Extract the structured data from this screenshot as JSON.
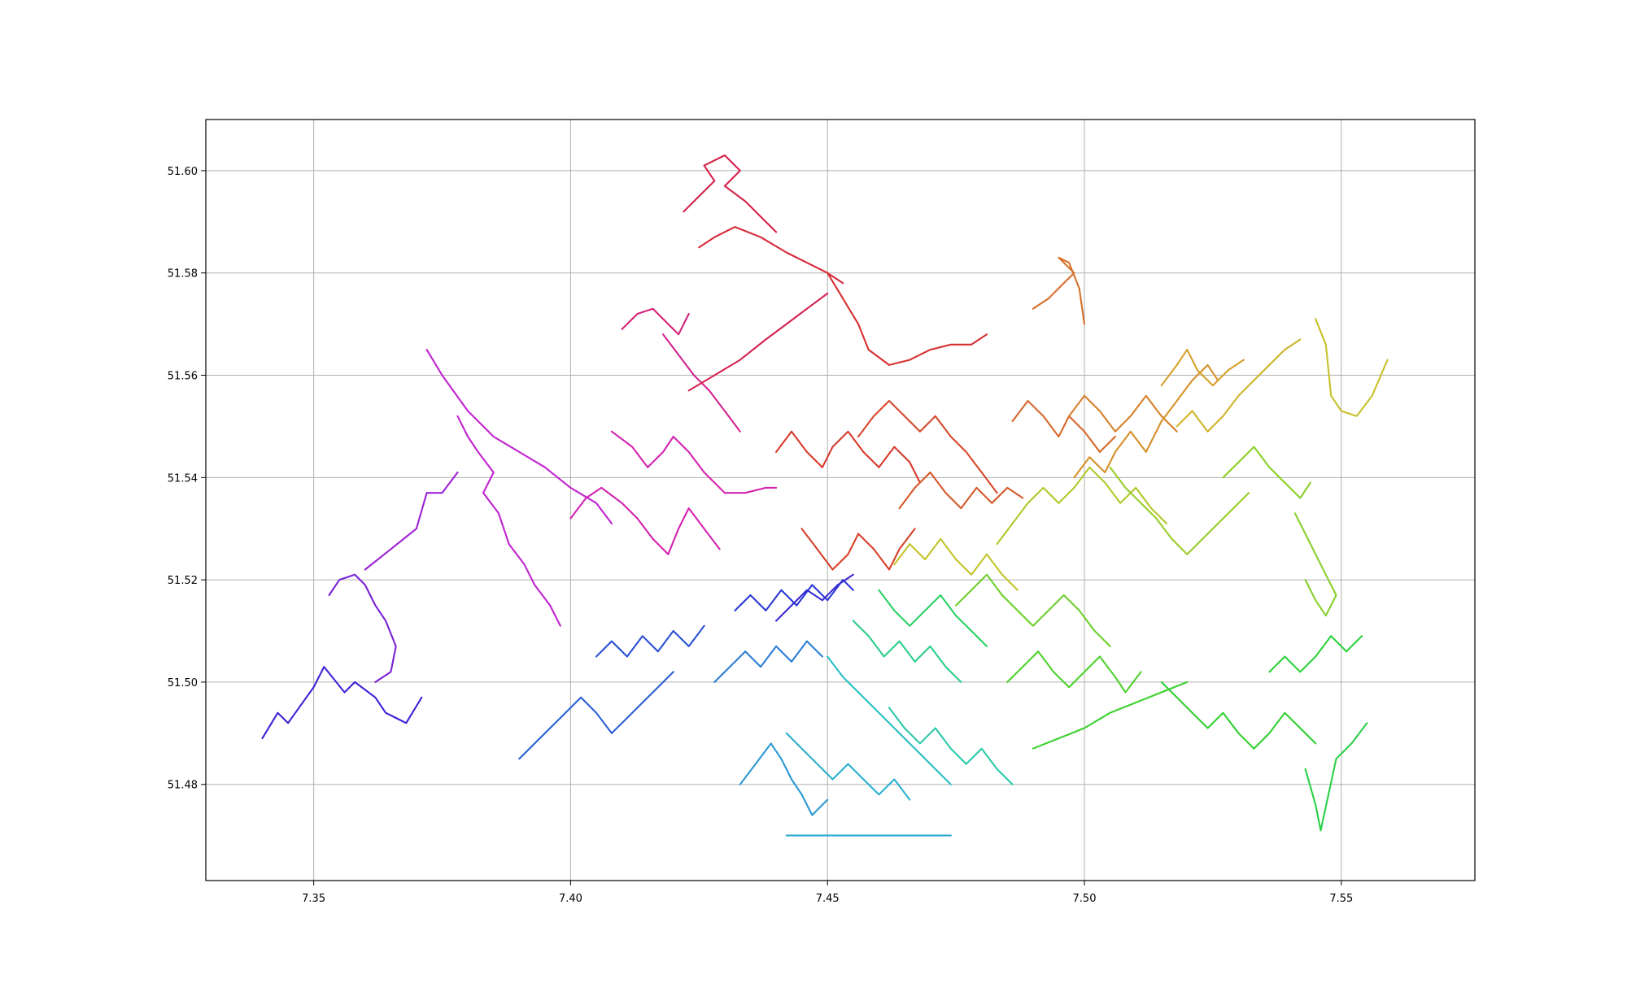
{
  "chart_data": {
    "type": "line",
    "title": "",
    "xlabel": "",
    "ylabel": "",
    "xlim": [
      7.329,
      7.576
    ],
    "ylim": [
      51.4612,
      51.61
    ],
    "xticks": [
      "7.35",
      "7.40",
      "7.45",
      "7.50",
      "7.55"
    ],
    "yticks": [
      "51.48",
      "51.50",
      "51.52",
      "51.54",
      "51.56",
      "51.58",
      "51.60"
    ],
    "grid": true,
    "legend": "none",
    "series": [
      {
        "color": "#3b22d6",
        "x": [
          7.34,
          7.343,
          7.345,
          7.35,
          7.352,
          7.356,
          7.358,
          7.362,
          7.364,
          7.366,
          7.368,
          7.371
        ],
        "y": [
          51.489,
          51.494,
          51.492,
          51.499,
          51.503,
          51.498,
          51.5,
          51.497,
          51.494,
          51.493,
          51.492,
          51.497
        ]
      },
      {
        "color": "#7a22d6",
        "x": [
          7.353,
          7.355,
          7.358,
          7.36,
          7.362,
          7.364,
          7.366,
          7.365,
          7.362
        ],
        "y": [
          51.517,
          51.52,
          51.521,
          51.519,
          51.515,
          51.512,
          51.507,
          51.502,
          51.5
        ]
      },
      {
        "color": "#9d22d6",
        "x": [
          7.36,
          7.365,
          7.37,
          7.372,
          7.375,
          7.378
        ],
        "y": [
          51.522,
          51.526,
          51.53,
          51.537,
          51.537,
          51.541
        ]
      },
      {
        "color": "#c222d0",
        "x": [
          7.378,
          7.38,
          7.382,
          7.385,
          7.383,
          7.386,
          7.388,
          7.391,
          7.393,
          7.396,
          7.398
        ],
        "y": [
          51.552,
          51.548,
          51.545,
          51.541,
          51.537,
          51.533,
          51.527,
          51.523,
          51.519,
          51.515,
          51.511
        ]
      },
      {
        "color": "#c222d0",
        "x": [
          7.372,
          7.375,
          7.38,
          7.385,
          7.39,
          7.395,
          7.4,
          7.405,
          7.408
        ],
        "y": [
          51.565,
          51.56,
          51.553,
          51.548,
          51.545,
          51.542,
          51.538,
          51.535,
          51.531
        ]
      },
      {
        "color": "#d422b0",
        "x": [
          7.4,
          7.403,
          7.406,
          7.41,
          7.413,
          7.416,
          7.419,
          7.421,
          7.423,
          7.426,
          7.429
        ],
        "y": [
          51.532,
          51.536,
          51.538,
          51.535,
          51.532,
          51.528,
          51.525,
          51.53,
          51.534,
          51.53,
          51.526
        ]
      },
      {
        "color": "#d422b0",
        "x": [
          7.408,
          7.412,
          7.415,
          7.418,
          7.42,
          7.423,
          7.426,
          7.43,
          7.434,
          7.438,
          7.44
        ],
        "y": [
          51.549,
          51.546,
          51.542,
          51.545,
          51.548,
          51.545,
          51.541,
          51.537,
          51.537,
          51.538,
          51.538
        ]
      },
      {
        "color": "#d42290",
        "x": [
          7.418,
          7.421,
          7.424,
          7.427,
          7.43,
          7.433
        ],
        "y": [
          51.568,
          51.564,
          51.56,
          51.557,
          51.553,
          51.549
        ]
      },
      {
        "color": "#d4227a",
        "x": [
          7.41,
          7.413,
          7.416,
          7.419,
          7.421,
          7.423
        ],
        "y": [
          51.569,
          51.572,
          51.573,
          51.57,
          51.568,
          51.572
        ]
      },
      {
        "color": "#d42250",
        "x": [
          7.423,
          7.428,
          7.433,
          7.438,
          7.442,
          7.446,
          7.45
        ],
        "y": [
          51.557,
          51.56,
          51.563,
          51.567,
          51.57,
          51.573,
          51.576
        ]
      },
      {
        "color": "#d6224a",
        "x": [
          7.422,
          7.425,
          7.428,
          7.426,
          7.43,
          7.433,
          7.43,
          7.434,
          7.437,
          7.44
        ],
        "y": [
          51.592,
          51.595,
          51.598,
          51.601,
          51.603,
          51.6,
          51.597,
          51.594,
          51.591,
          51.588
        ]
      },
      {
        "color": "#d62a3a",
        "x": [
          7.425,
          7.428,
          7.432,
          7.437,
          7.442,
          7.446,
          7.45,
          7.453
        ],
        "y": [
          51.585,
          51.587,
          51.589,
          51.587,
          51.584,
          51.582,
          51.58,
          51.578
        ]
      },
      {
        "color": "#d6302f",
        "x": [
          7.45,
          7.453,
          7.456,
          7.458,
          7.462,
          7.466,
          7.47,
          7.474,
          7.478,
          7.481
        ],
        "y": [
          51.58,
          51.575,
          51.57,
          51.565,
          51.562,
          51.563,
          51.565,
          51.566,
          51.566,
          51.568
        ]
      },
      {
        "color": "#d63a2a",
        "x": [
          7.44,
          7.443,
          7.446,
          7.449,
          7.451,
          7.454,
          7.457,
          7.46,
          7.463,
          7.466,
          7.468
        ],
        "y": [
          51.545,
          51.549,
          51.545,
          51.542,
          51.546,
          51.549,
          51.545,
          51.542,
          51.546,
          51.543,
          51.539
        ]
      },
      {
        "color": "#d6402a",
        "x": [
          7.445,
          7.448,
          7.451,
          7.454,
          7.456,
          7.459,
          7.462,
          7.464,
          7.467
        ],
        "y": [
          51.53,
          51.526,
          51.522,
          51.525,
          51.529,
          51.526,
          51.522,
          51.526,
          51.53
        ]
      },
      {
        "color": "#d6482a",
        "x": [
          7.456,
          7.459,
          7.462,
          7.465,
          7.468,
          7.471,
          7.474,
          7.477,
          7.48,
          7.483
        ],
        "y": [
          51.548,
          51.552,
          51.555,
          51.552,
          51.549,
          51.552,
          51.548,
          51.545,
          51.541,
          51.537
        ]
      },
      {
        "color": "#d6582a",
        "x": [
          7.464,
          7.467,
          7.47,
          7.473,
          7.476,
          7.479,
          7.482,
          7.485,
          7.488
        ],
        "y": [
          51.534,
          51.538,
          51.541,
          51.537,
          51.534,
          51.538,
          51.535,
          51.538,
          51.536
        ]
      },
      {
        "color": "#d6682a",
        "x": [
          7.486,
          7.489,
          7.492,
          7.495,
          7.497,
          7.5,
          7.503,
          7.506
        ],
        "y": [
          51.551,
          51.555,
          51.552,
          51.548,
          51.552,
          51.549,
          51.545,
          51.548
        ]
      },
      {
        "color": "#d6702a",
        "x": [
          7.49,
          7.493,
          7.496,
          7.498,
          7.495,
          7.497,
          7.499,
          7.5
        ],
        "y": [
          51.573,
          51.575,
          51.578,
          51.58,
          51.583,
          51.582,
          51.577,
          51.57
        ]
      },
      {
        "color": "#d6802a",
        "x": [
          7.497,
          7.5,
          7.503,
          7.506,
          7.509,
          7.512,
          7.515,
          7.518
        ],
        "y": [
          51.552,
          51.556,
          51.553,
          51.549,
          51.552,
          51.556,
          51.552,
          51.549
        ]
      },
      {
        "color": "#d69028",
        "x": [
          7.498,
          7.501,
          7.504,
          7.506,
          7.509,
          7.512,
          7.515,
          7.518,
          7.521,
          7.524,
          7.526
        ],
        "y": [
          51.54,
          51.544,
          51.541,
          51.545,
          51.549,
          51.545,
          51.551,
          51.555,
          51.559,
          51.562,
          51.559
        ]
      },
      {
        "color": "#d6a02a",
        "x": [
          7.515,
          7.518,
          7.52,
          7.522,
          7.525,
          7.528,
          7.531
        ],
        "y": [
          51.558,
          51.562,
          51.565,
          51.561,
          51.558,
          51.561,
          51.563
        ]
      },
      {
        "color": "#cfb42a",
        "x": [
          7.518,
          7.521,
          7.524,
          7.527,
          7.53,
          7.533,
          7.536,
          7.539,
          7.542
        ],
        "y": [
          51.55,
          51.553,
          51.549,
          51.552,
          51.556,
          51.559,
          51.562,
          51.565,
          51.567
        ]
      },
      {
        "color": "#c8c02a",
        "x": [
          7.545,
          7.547,
          7.548,
          7.55,
          7.553,
          7.556,
          7.559
        ],
        "y": [
          51.571,
          51.566,
          51.556,
          51.553,
          51.552,
          51.556,
          51.563
        ]
      },
      {
        "color": "#c2c42a",
        "x": [
          7.463,
          7.466,
          7.469,
          7.472,
          7.475,
          7.478,
          7.481,
          7.484,
          7.487
        ],
        "y": [
          51.523,
          51.527,
          51.524,
          51.528,
          51.524,
          51.521,
          51.525,
          51.521,
          51.518
        ]
      },
      {
        "color": "#b0c82a",
        "x": [
          7.483,
          7.486,
          7.489,
          7.492,
          7.495,
          7.498,
          7.501,
          7.504,
          7.507,
          7.51,
          7.513,
          7.516
        ],
        "y": [
          51.527,
          51.531,
          51.535,
          51.538,
          51.535,
          51.538,
          51.542,
          51.539,
          51.535,
          51.538,
          51.534,
          51.531
        ]
      },
      {
        "color": "#9ccc2a",
        "x": [
          7.505,
          7.508,
          7.511,
          7.514,
          7.517,
          7.52,
          7.523,
          7.526,
          7.529,
          7.532
        ],
        "y": [
          51.542,
          51.538,
          51.535,
          51.532,
          51.528,
          51.525,
          51.528,
          51.531,
          51.534,
          51.537
        ]
      },
      {
        "color": "#8ad02a",
        "x": [
          7.527,
          7.53,
          7.533,
          7.536,
          7.539,
          7.542,
          7.544
        ],
        "y": [
          51.54,
          51.543,
          51.546,
          51.542,
          51.539,
          51.536,
          51.539
        ]
      },
      {
        "color": "#88d02c",
        "x": [
          7.541,
          7.543,
          7.545,
          7.547,
          7.549,
          7.547,
          7.545,
          7.543
        ],
        "y": [
          51.533,
          51.529,
          51.525,
          51.521,
          51.517,
          51.513,
          51.516,
          51.52
        ]
      },
      {
        "color": "#6cd02c",
        "x": [
          7.475,
          7.478,
          7.481,
          7.484,
          7.487,
          7.49,
          7.493,
          7.496,
          7.499,
          7.502,
          7.505
        ],
        "y": [
          51.515,
          51.518,
          51.521,
          51.517,
          51.514,
          51.511,
          51.514,
          51.517,
          51.514,
          51.51,
          51.507
        ]
      },
      {
        "color": "#4ed22c",
        "x": [
          7.485,
          7.488,
          7.491,
          7.494,
          7.497,
          7.5,
          7.503,
          7.506,
          7.508,
          7.511
        ],
        "y": [
          51.5,
          51.503,
          51.506,
          51.502,
          51.499,
          51.502,
          51.505,
          51.501,
          51.498,
          51.502
        ]
      },
      {
        "color": "#3cd22e",
        "x": [
          7.49,
          7.495,
          7.5,
          7.505,
          7.51,
          7.515,
          7.52
        ],
        "y": [
          51.487,
          51.489,
          51.491,
          51.494,
          51.496,
          51.498,
          51.5
        ]
      },
      {
        "color": "#30d030",
        "x": [
          7.515,
          7.518,
          7.521,
          7.524,
          7.527,
          7.53,
          7.533,
          7.536,
          7.539,
          7.542,
          7.545
        ],
        "y": [
          51.5,
          51.497,
          51.494,
          51.491,
          51.494,
          51.49,
          51.487,
          51.49,
          51.494,
          51.491,
          51.488
        ]
      },
      {
        "color": "#2ed23a",
        "x": [
          7.536,
          7.539,
          7.542,
          7.545,
          7.548,
          7.551,
          7.554
        ],
        "y": [
          51.502,
          51.505,
          51.502,
          51.505,
          51.509,
          51.506,
          51.509
        ]
      },
      {
        "color": "#2ad048",
        "x": [
          7.543,
          7.545,
          7.546,
          7.549,
          7.552,
          7.555
        ],
        "y": [
          51.483,
          51.476,
          51.471,
          51.485,
          51.488,
          51.492
        ]
      },
      {
        "color": "#2ad064",
        "x": [
          7.46,
          7.463,
          7.466,
          7.469,
          7.472,
          7.475,
          7.478,
          7.481
        ],
        "y": [
          51.518,
          51.514,
          51.511,
          51.514,
          51.517,
          51.513,
          51.51,
          51.507
        ]
      },
      {
        "color": "#2acf8a",
        "x": [
          7.455,
          7.458,
          7.461,
          7.464,
          7.467,
          7.47,
          7.473,
          7.476
        ],
        "y": [
          51.512,
          51.509,
          51.505,
          51.508,
          51.504,
          51.507,
          51.503,
          51.5
        ]
      },
      {
        "color": "#2acaa8",
        "x": [
          7.462,
          7.465,
          7.468,
          7.471,
          7.474,
          7.477,
          7.48,
          7.483,
          7.486
        ],
        "y": [
          51.495,
          51.491,
          51.488,
          51.491,
          51.487,
          51.484,
          51.487,
          51.483,
          51.48
        ]
      },
      {
        "color": "#2abec4",
        "x": [
          7.45,
          7.453,
          7.456,
          7.459,
          7.462,
          7.465,
          7.468,
          7.471,
          7.474
        ],
        "y": [
          51.505,
          51.501,
          51.498,
          51.495,
          51.492,
          51.489,
          51.486,
          51.483,
          51.48
        ]
      },
      {
        "color": "#2ab0d0",
        "x": [
          7.442,
          7.445,
          7.448,
          7.451,
          7.454,
          7.457,
          7.46,
          7.463,
          7.466
        ],
        "y": [
          51.49,
          51.487,
          51.484,
          51.481,
          51.484,
          51.481,
          51.478,
          51.481,
          51.477
        ]
      },
      {
        "color": "#2aa6d2",
        "x": [
          7.442,
          7.448,
          7.455,
          7.462,
          7.468,
          7.474
        ],
        "y": [
          51.47,
          51.47,
          51.47,
          51.47,
          51.47,
          51.47
        ]
      },
      {
        "color": "#2a98d2",
        "x": [
          7.433,
          7.436,
          7.439,
          7.441,
          7.443,
          7.445,
          7.447,
          7.45
        ],
        "y": [
          51.48,
          51.484,
          51.488,
          51.485,
          51.481,
          51.478,
          51.474,
          51.477
        ]
      },
      {
        "color": "#2a7ed4",
        "x": [
          7.428,
          7.431,
          7.434,
          7.437,
          7.44,
          7.443,
          7.446,
          7.449
        ],
        "y": [
          51.5,
          51.503,
          51.506,
          51.503,
          51.507,
          51.504,
          51.508,
          51.505
        ]
      },
      {
        "color": "#2a60d4",
        "x": [
          7.39,
          7.393,
          7.396,
          7.399,
          7.402,
          7.405,
          7.408,
          7.411,
          7.414,
          7.417,
          7.42
        ],
        "y": [
          51.485,
          51.488,
          51.491,
          51.494,
          51.497,
          51.494,
          51.49,
          51.493,
          51.496,
          51.499,
          51.502
        ]
      },
      {
        "color": "#2a50d4",
        "x": [
          7.405,
          7.408,
          7.411,
          7.414,
          7.417,
          7.42,
          7.423,
          7.426
        ],
        "y": [
          51.505,
          51.508,
          51.505,
          51.509,
          51.506,
          51.51,
          51.507,
          51.511
        ]
      },
      {
        "color": "#2a38d4",
        "x": [
          7.432,
          7.435,
          7.438,
          7.441,
          7.444,
          7.447,
          7.45,
          7.453,
          7.455
        ],
        "y": [
          51.514,
          51.517,
          51.514,
          51.518,
          51.515,
          51.519,
          51.516,
          51.52,
          51.518
        ]
      },
      {
        "color": "#3a2ad4",
        "x": [
          7.44,
          7.443,
          7.446,
          7.449,
          7.452,
          7.455
        ],
        "y": [
          51.512,
          51.515,
          51.518,
          51.516,
          51.519,
          51.521
        ]
      }
    ]
  }
}
